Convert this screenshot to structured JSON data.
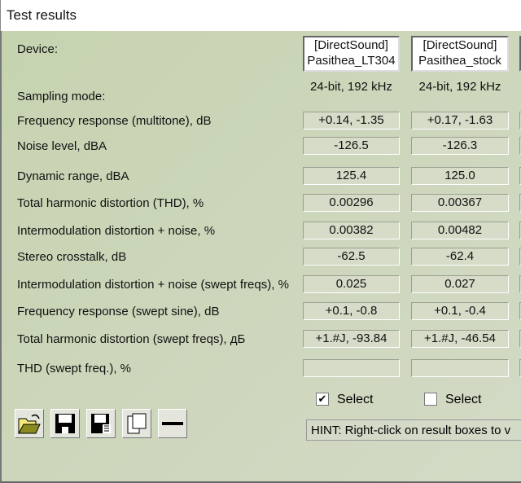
{
  "window": {
    "title": "Test results"
  },
  "labels": [
    "Device:",
    "Sampling mode:",
    "Frequency response (multitone), dB",
    "Noise level, dBA",
    "Dynamic range, dBA",
    "Total harmonic distortion (THD), %",
    "Intermodulation distortion + noise, %",
    "Stereo crosstalk, dB",
    "Intermodulation distortion + noise (swept freqs), %",
    "Frequency response (swept sine), dB",
    "Total harmonic distortion (swept freqs), дБ",
    "THD (swept freq.), %"
  ],
  "devices": [
    {
      "line1": "[DirectSound]",
      "line2": "Pasithea_LT304",
      "sampling": "24-bit, 192 kHz",
      "values": [
        "+0.14, -1.35",
        "-126.5",
        "125.4",
        "0.00296",
        "0.00382",
        "-62.5",
        "0.025",
        "+0.1, -0.8",
        "+1.#J, -93.84",
        ""
      ],
      "select_label": "Select",
      "selected": true
    },
    {
      "line1": "[DirectSound]",
      "line2": "Pasithea_stock",
      "sampling": "24-bit, 192 kHz",
      "values": [
        "+0.17, -1.63",
        "-126.3",
        "125.0",
        "0.00367",
        "0.00482",
        "-62.4",
        "0.027",
        "+0.1, -0.4",
        "+1.#J, -46.54",
        ""
      ],
      "select_label": "Select",
      "selected": false
    }
  ],
  "toolbar": [
    "open-folder-icon",
    "save-icon",
    "save-list-icon",
    "copy-icon",
    "minus-icon"
  ],
  "hint": "HINT: Right-click on result boxes to v"
}
